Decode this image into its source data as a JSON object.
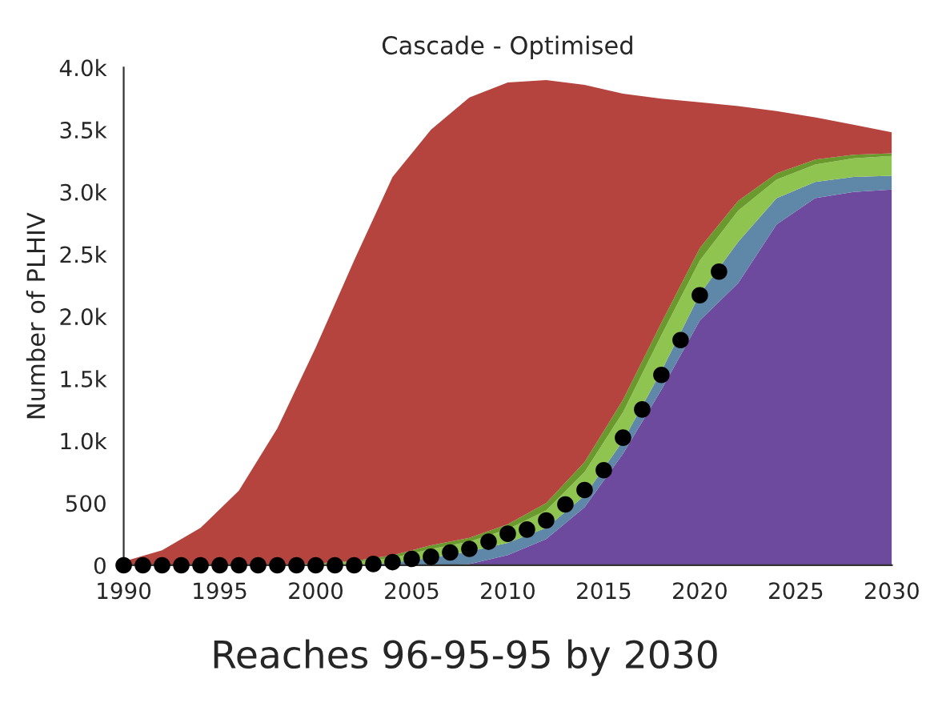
{
  "chart_data": {
    "type": "area",
    "stacked": true,
    "title": "Cascade - Optimised",
    "ylabel": "Number of PLHIV",
    "annotations": [
      "Reaches 96-95-95 by 2030"
    ],
    "x": [
      1990,
      1992,
      1994,
      1996,
      1998,
      2000,
      2002,
      2004,
      2006,
      2008,
      2010,
      2012,
      2014,
      2016,
      2018,
      2020,
      2022,
      2024,
      2026,
      2028,
      2030
    ],
    "series": [
      {
        "color": "#6e4a9e",
        "values": [
          0,
          0,
          0,
          0,
          0,
          0,
          0,
          0,
          0,
          10,
          81,
          210,
          467,
          896,
          1411,
          1968,
          2268,
          2740,
          2950,
          3000,
          3020
        ]
      },
      {
        "color": "#5f87a8",
        "values": [
          0,
          0,
          0,
          0,
          0,
          0,
          3,
          20,
          60,
          100,
          99,
          90,
          93,
          104,
          149,
          212,
          332,
          210,
          130,
          120,
          110
        ]
      },
      {
        "color": "#8fc450",
        "values": [
          0,
          0,
          0,
          0,
          0,
          10,
          22,
          40,
          70,
          80,
          110,
          140,
          190,
          230,
          290,
          270,
          250,
          150,
          140,
          150,
          160
        ]
      },
      {
        "color": "#6a9a2e",
        "values": [
          0,
          0,
          0,
          0,
          0,
          5,
          10,
          20,
          30,
          30,
          40,
          60,
          80,
          100,
          100,
          100,
          80,
          50,
          40,
          30,
          20
        ]
      },
      {
        "color": "#b5443f",
        "values": [
          30,
          120,
          300,
          600,
          1100,
          1735,
          2415,
          3040,
          3340,
          3540,
          3550,
          3400,
          3030,
          2460,
          1800,
          1170,
          760,
          500,
          340,
          240,
          170
        ]
      },
      {
        "type": "scatter",
        "color": "#000000",
        "marker": "circle",
        "x": [
          1990,
          1991,
          1992,
          1993,
          1994,
          1995,
          1996,
          1997,
          1998,
          1999,
          2000,
          2001,
          2002,
          2003,
          2004,
          2005,
          2006,
          2007,
          2008,
          2009,
          2010,
          2011,
          2012,
          2013,
          2014,
          2015,
          2016,
          2017,
          2018,
          2019,
          2020,
          2021
        ],
        "values": [
          0,
          0,
          0,
          0,
          0,
          0,
          0,
          0,
          0,
          0,
          0,
          0,
          0,
          10,
          25,
          51,
          68,
          103,
          132,
          189,
          253,
          287,
          360,
          489,
          605,
          764,
          1025,
          1252,
          1530,
          1810,
          2170,
          2360
        ]
      }
    ],
    "xlim": [
      1990,
      2030
    ],
    "xticks": [
      1990,
      1995,
      2000,
      2005,
      2010,
      2015,
      2020,
      2025,
      2030
    ],
    "ylim": [
      0,
      4000
    ],
    "yticks": [
      0,
      500,
      {
        "value": 1000,
        "label": "1.0k"
      },
      {
        "value": 1500,
        "label": "1.5k"
      },
      {
        "value": 2000,
        "label": "2.0k"
      },
      {
        "value": 2500,
        "label": "2.5k"
      },
      {
        "value": 3000,
        "label": "3.0k"
      },
      {
        "value": 3500,
        "label": "3.5k"
      },
      {
        "value": 4000,
        "label": "4.0k"
      }
    ],
    "grid": false,
    "legend": false
  }
}
